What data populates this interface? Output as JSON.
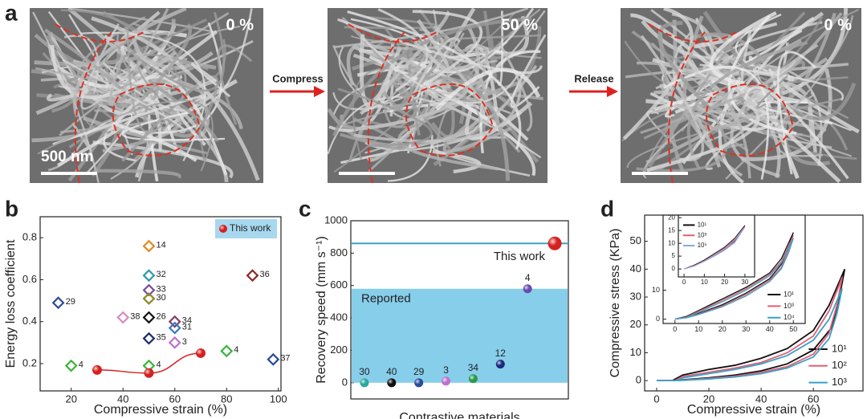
{
  "panel_a": {
    "label": "a",
    "images": [
      {
        "strain": "0 %",
        "scale_bar": "500 nm"
      },
      {
        "strain": "50 %"
      },
      {
        "strain": "0 %"
      }
    ],
    "arrows": [
      "Compress",
      "Release"
    ]
  },
  "chart_data": [
    {
      "type": "scatter",
      "panel": "b",
      "xlabel": "Compressive strain (%)",
      "ylabel": "Energy loss coefficient",
      "xlim": [
        8,
        101
      ],
      "xticks": [
        20,
        40,
        60,
        80,
        100
      ],
      "ylim": [
        0.07,
        0.9
      ],
      "yticks": [
        0.2,
        0.4,
        0.6,
        0.8
      ],
      "legend": "upper right",
      "series": [
        {
          "name": "This work",
          "color": "#d62020",
          "x": [
            30,
            50,
            70
          ],
          "values": [
            0.17,
            0.155,
            0.25
          ]
        }
      ],
      "points": [
        {
          "label": "29",
          "x": 15,
          "y": 0.49,
          "color": "#2b4a9a"
        },
        {
          "label": "4",
          "x": 20,
          "y": 0.19,
          "color": "#3cb43c"
        },
        {
          "label": "14",
          "x": 50,
          "y": 0.76,
          "color": "#e08a1e"
        },
        {
          "label": "32",
          "x": 50,
          "y": 0.62,
          "color": "#2a9aa8"
        },
        {
          "label": "33",
          "x": 50,
          "y": 0.55,
          "color": "#7a4aa0"
        },
        {
          "label": "30",
          "x": 50,
          "y": 0.51,
          "color": "#8a8a20"
        },
        {
          "label": "26",
          "x": 50,
          "y": 0.42,
          "color": "#111111"
        },
        {
          "label": "38",
          "x": 40,
          "y": 0.42,
          "color": "#d888c8"
        },
        {
          "label": "34",
          "x": 60,
          "y": 0.4,
          "color": "#8a3a6a"
        },
        {
          "label": "31",
          "x": 60,
          "y": 0.37,
          "color": "#3a7ac0"
        },
        {
          "label": "35",
          "x": 50,
          "y": 0.32,
          "color": "#1a2a6a"
        },
        {
          "label": "3",
          "x": 60,
          "y": 0.3,
          "color": "#c070d0"
        },
        {
          "label": "4",
          "x": 50,
          "y": 0.19,
          "color": "#3cb43c"
        },
        {
          "label": "36",
          "x": 90,
          "y": 0.62,
          "color": "#8a2a2a"
        },
        {
          "label": "4",
          "x": 80,
          "y": 0.26,
          "color": "#3cb43c"
        },
        {
          "label": "37",
          "x": 98,
          "y": 0.22,
          "color": "#2b4a9a"
        }
      ]
    },
    {
      "type": "balls",
      "panel": "c",
      "xlabel": "Contrastive materials",
      "ylabel": "Recovery speed (mm s⁻¹)",
      "ylim": [
        -100,
        1000
      ],
      "yticks": [
        0,
        200,
        400,
        600,
        800,
        1000
      ],
      "categories": [
        "30",
        "40",
        "29",
        "3",
        "34",
        "12",
        "4"
      ],
      "values": [
        0,
        0,
        0,
        10,
        25,
        115,
        580
      ],
      "colors": [
        "#2aa8a0",
        "#111111",
        "#2b4a9a",
        "#c070d0",
        "#2a9a4a",
        "#1a2a7a",
        "#6a4ab0"
      ],
      "reported_region": {
        "label": "Reported",
        "max": 580,
        "color": "#87ceeb"
      },
      "this_work": {
        "label": "This work",
        "value": 860,
        "color": "#d62020",
        "line_color": "#3aa0c8"
      }
    },
    {
      "type": "line",
      "panel": "d",
      "xlabel": "Compressive strain (%)",
      "ylabel": "Compressive stress (KPa)",
      "xlim": [
        -4.6,
        79
      ],
      "xticks": [
        0,
        20,
        40,
        60
      ],
      "ylim": [
        -3.7,
        59.4
      ],
      "yticks": [
        0,
        10,
        20,
        30,
        40,
        50
      ],
      "legend": "lower right",
      "series": [
        {
          "name": "10¹",
          "color": "#111111",
          "x": [
            0,
            6,
            10,
            20,
            30,
            40,
            50,
            60,
            66,
            72,
            70,
            67,
            60,
            50,
            40,
            30,
            20,
            10,
            6,
            0
          ],
          "values": [
            0,
            0,
            2,
            4,
            5.5,
            8,
            11.5,
            18,
            27,
            40,
            30,
            19,
            11,
            6,
            3.5,
            2,
            1,
            0.3,
            0,
            0
          ]
        },
        {
          "name": "10²",
          "color": "#e06070",
          "x": [
            0,
            7,
            10,
            20,
            30,
            40,
            50,
            60,
            66,
            71,
            69,
            66,
            60,
            50,
            40,
            30,
            20,
            10,
            7,
            0
          ],
          "values": [
            0,
            0,
            1.5,
            3,
            4.5,
            6.5,
            10,
            16,
            25,
            37,
            27,
            17,
            9.5,
            5,
            3,
            1.6,
            0.8,
            0.2,
            0,
            0
          ]
        },
        {
          "name": "10³",
          "color": "#3aa0c8",
          "x": [
            0,
            8,
            10,
            20,
            30,
            40,
            50,
            60,
            66,
            71,
            69,
            66,
            60,
            50,
            40,
            30,
            20,
            10,
            8,
            0
          ],
          "values": [
            0,
            0,
            1,
            2.5,
            4,
            6,
            9,
            14.5,
            22,
            33,
            24,
            15,
            8.5,
            4.5,
            2.5,
            1.3,
            0.6,
            0.1,
            0,
            0
          ]
        }
      ]
    },
    {
      "type": "line",
      "xlim": [
        -5,
        55
      ],
      "xticks": [
        0,
        10,
        20,
        30,
        40,
        50
      ],
      "ylim": [
        -1.5,
        36
      ],
      "yticks": [
        0,
        10
      ],
      "legend": "lower right",
      "series": [
        {
          "name": "10¹",
          "color": "#111111",
          "x": [
            0,
            5,
            10,
            20,
            30,
            40,
            45,
            50,
            48,
            45,
            40,
            30,
            20,
            10,
            5,
            0
          ],
          "values": [
            0,
            1,
            3,
            7,
            11,
            16,
            21,
            30,
            25,
            19,
            14,
            9,
            5,
            2,
            0.7,
            0
          ]
        },
        {
          "name": "10³",
          "color": "#e06070",
          "x": [
            0,
            5,
            10,
            20,
            30,
            40,
            45,
            50,
            48,
            45,
            40,
            30,
            20,
            10,
            5,
            0
          ],
          "values": [
            0,
            0.8,
            2.7,
            6.5,
            10.5,
            15.5,
            20,
            29,
            24,
            18,
            13.5,
            8.5,
            4.6,
            1.8,
            0.6,
            0
          ]
        },
        {
          "name": "10⁴",
          "color": "#3aa0c8",
          "x": [
            0,
            5,
            10,
            20,
            30,
            40,
            45,
            50,
            48,
            45,
            40,
            30,
            20,
            10,
            5,
            0
          ],
          "values": [
            0,
            0.6,
            2.4,
            6,
            10,
            15,
            19.5,
            28,
            23,
            17.5,
            13,
            8,
            4.3,
            1.6,
            0.5,
            0
          ]
        }
      ]
    },
    {
      "type": "line",
      "xlim": [
        -2.8,
        34.8
      ],
      "xticks": [
        0,
        10,
        20,
        30
      ],
      "ylim": [
        -3.1,
        21
      ],
      "yticks": [
        0,
        5,
        10,
        15,
        20
      ],
      "legend": "upper left",
      "series": [
        {
          "name": "10¹",
          "color": "#111111",
          "x": [
            0,
            5,
            10,
            15,
            20,
            25,
            30,
            25,
            20,
            15,
            10,
            5,
            0
          ],
          "values": [
            0,
            1.5,
            3.5,
            5.5,
            8,
            11,
            17,
            12,
            8.5,
            6,
            3.5,
            1.5,
            0
          ]
        },
        {
          "name": "10³",
          "color": "#e06070",
          "x": [
            0,
            5,
            10,
            15,
            20,
            25,
            30,
            25,
            20,
            15,
            10,
            5,
            0
          ],
          "values": [
            0,
            1.3,
            3.2,
            5.2,
            7.6,
            10.6,
            16.6,
            11.6,
            8.1,
            5.7,
            3.2,
            1.3,
            0
          ]
        },
        {
          "name": "10⁵",
          "color": "#88aadd",
          "x": [
            0,
            5,
            10,
            15,
            20,
            25,
            30,
            25,
            20,
            15,
            10,
            5,
            0
          ],
          "values": [
            0,
            1.1,
            3,
            5,
            7.3,
            10.3,
            16.3,
            11.3,
            7.8,
            5.4,
            3,
            1.1,
            0
          ]
        }
      ]
    }
  ]
}
